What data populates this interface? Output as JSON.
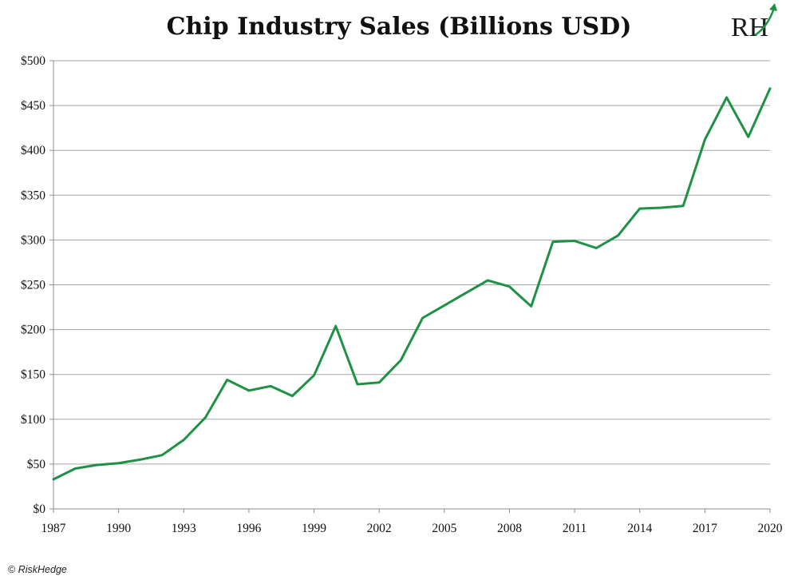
{
  "chart_data": {
    "type": "line",
    "title": "Chip Industry Sales (Billions USD)",
    "xlabel": "",
    "ylabel": "",
    "x": [
      1987,
      1988,
      1989,
      1990,
      1991,
      1992,
      1993,
      1994,
      1995,
      1996,
      1997,
      1998,
      1999,
      2000,
      2001,
      2002,
      2003,
      2004,
      2005,
      2006,
      2007,
      2008,
      2009,
      2010,
      2011,
      2012,
      2013,
      2014,
      2015,
      2016,
      2017,
      2018,
      2019,
      2020
    ],
    "series": [
      {
        "values": [
          33,
          45,
          49,
          51,
          55,
          60,
          77,
          102,
          144,
          132,
          137,
          126,
          149,
          204,
          139,
          141,
          166,
          213,
          227,
          241,
          255,
          248,
          226,
          298,
          299,
          291,
          305,
          335,
          336,
          338,
          412,
          459,
          415,
          469
        ],
        "color": "#1e9144"
      }
    ],
    "xlim": [
      1987,
      2020
    ],
    "ylim": [
      0,
      500
    ],
    "x_ticks": [
      "1987",
      "1990",
      "1993",
      "1996",
      "1999",
      "2002",
      "2005",
      "2008",
      "2011",
      "2014",
      "2017",
      "2020"
    ],
    "y_ticks": [
      "$0",
      "$50",
      "$100",
      "$150",
      "$200",
      "$250",
      "$300",
      "$350",
      "$400",
      "$450",
      "$500"
    ],
    "grid": true,
    "legend": "none"
  },
  "logo": {
    "text": "RH",
    "icon": "rh-arrow-logo-icon",
    "color": "#1e9144"
  },
  "credit": {
    "icon": "copyright-icon",
    "symbol": "©",
    "text": "RiskHedge"
  }
}
